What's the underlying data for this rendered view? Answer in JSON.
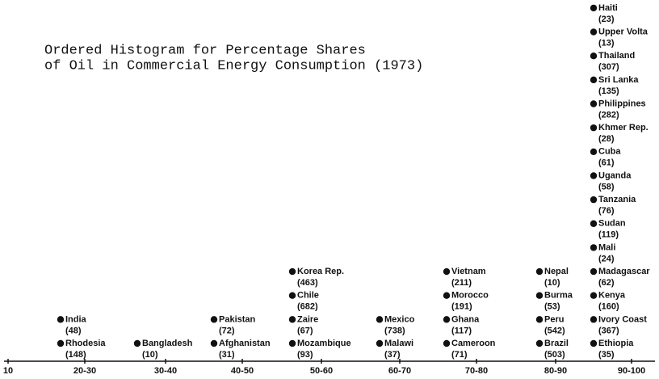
{
  "title": [
    "Ordered Histogram for Percentage Shares",
    "of Oil in Commercial Energy Consumption (1973)"
  ],
  "axis_labels": [
    "10",
    "20-30",
    "30-40",
    "40-50",
    "50-60",
    "60-70",
    "70-80",
    "80-90",
    "90-100"
  ],
  "columns": [
    {
      "entries": [
        {
          "name": "Rhodesia",
          "value": "(148)"
        },
        {
          "name": "India",
          "value": "(48)"
        }
      ]
    },
    {
      "entries": [
        {
          "name": "Bangladesh",
          "value": "(10)"
        }
      ]
    },
    {
      "entries": [
        {
          "name": "Afghanistan",
          "value": "(31)"
        },
        {
          "name": "Pakistan",
          "value": "(72)"
        }
      ]
    },
    {
      "entries": [
        {
          "name": "Mozambique",
          "value": "(93)"
        },
        {
          "name": "Zaire",
          "value": "(67)"
        },
        {
          "name": "Chile",
          "value": "(682)"
        },
        {
          "name": "Korea Rep.",
          "value": "(463)"
        }
      ]
    },
    {
      "entries": [
        {
          "name": "Malawi",
          "value": "(37)"
        },
        {
          "name": "Mexico",
          "value": "(738)"
        }
      ]
    },
    {
      "entries": [
        {
          "name": "Cameroon",
          "value": "(71)"
        },
        {
          "name": "Ghana",
          "value": "(117)"
        },
        {
          "name": "Morocco",
          "value": "(191)"
        },
        {
          "name": "Vietnam",
          "value": "(211)"
        }
      ]
    },
    {
      "entries": [
        {
          "name": "Brazil",
          "value": "(503)"
        },
        {
          "name": "Peru",
          "value": "(542)"
        },
        {
          "name": "Burma",
          "value": "(53)"
        },
        {
          "name": "Nepal",
          "value": "(10)"
        }
      ]
    },
    {
      "entries": [
        {
          "name": "Ethiopia",
          "value": "(35)"
        },
        {
          "name": "Ivory Coast",
          "value": "(367)"
        },
        {
          "name": "Kenya",
          "value": "(160)"
        },
        {
          "name": "Madagascar",
          "value": "(62)"
        },
        {
          "name": "Mali",
          "value": "(24)"
        },
        {
          "name": "Sudan",
          "value": "(119)"
        },
        {
          "name": "Tanzania",
          "value": "(76)"
        },
        {
          "name": "Uganda",
          "value": "(58)"
        },
        {
          "name": "Cuba",
          "value": "(61)"
        },
        {
          "name": "Khmer Rep.",
          "value": "(28)"
        },
        {
          "name": "Philippines",
          "value": "(282)"
        },
        {
          "name": "Sri Lanka",
          "value": "(135)"
        },
        {
          "name": "Thailand",
          "value": "(307)"
        },
        {
          "name": "Upper Volta",
          "value": "(13)"
        },
        {
          "name": "Haiti",
          "value": "(23)"
        }
      ]
    }
  ]
}
